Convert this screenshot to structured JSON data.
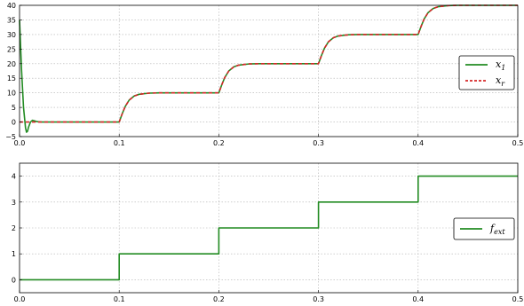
{
  "chart_data": [
    {
      "type": "line",
      "title": "",
      "xlabel": "",
      "ylabel": "",
      "xlim": [
        0.0,
        0.5
      ],
      "ylim": [
        -5,
        40
      ],
      "xticks": [
        "0.0",
        "0.1",
        "0.2",
        "0.3",
        "0.4",
        "0.5"
      ],
      "yticks": [
        "−5",
        "0",
        "5",
        "10",
        "15",
        "20",
        "25",
        "30",
        "35",
        "40"
      ],
      "grid": true,
      "legend_position": "right",
      "series": [
        {
          "name": "x1",
          "color": "#228b22",
          "style": "solid",
          "x": [
            0.0,
            0.002,
            0.004,
            0.006,
            0.007,
            0.008,
            0.009,
            0.011,
            0.013,
            0.015,
            0.018,
            0.022,
            0.1,
            0.103,
            0.106,
            0.11,
            0.115,
            0.12,
            0.13,
            0.14,
            0.2,
            0.203,
            0.206,
            0.21,
            0.215,
            0.22,
            0.23,
            0.24,
            0.3,
            0.303,
            0.306,
            0.31,
            0.315,
            0.32,
            0.33,
            0.34,
            0.4,
            0.403,
            0.406,
            0.41,
            0.415,
            0.42,
            0.43,
            0.44,
            0.5
          ],
          "y": [
            35,
            18,
            5,
            -2,
            -3.5,
            -3.2,
            -1.8,
            0,
            0.6,
            0.4,
            0.1,
            0,
            0,
            2.8,
            5.3,
            7.5,
            8.9,
            9.5,
            9.9,
            10,
            10,
            12.8,
            15.3,
            17.5,
            18.9,
            19.5,
            19.9,
            20,
            20,
            22.8,
            25.3,
            27.5,
            28.9,
            29.5,
            29.9,
            30,
            30,
            32.8,
            35.3,
            37.5,
            38.9,
            39.5,
            39.9,
            40,
            40
          ]
        },
        {
          "name": "xr",
          "color": "#d62728",
          "style": "dashed",
          "x": [
            0.0,
            0.1,
            0.103,
            0.106,
            0.11,
            0.115,
            0.12,
            0.13,
            0.14,
            0.2,
            0.203,
            0.206,
            0.21,
            0.215,
            0.22,
            0.23,
            0.24,
            0.3,
            0.303,
            0.306,
            0.31,
            0.315,
            0.32,
            0.33,
            0.34,
            0.4,
            0.403,
            0.406,
            0.41,
            0.415,
            0.42,
            0.43,
            0.44,
            0.5
          ],
          "y": [
            0,
            0,
            2.8,
            5.3,
            7.5,
            8.9,
            9.5,
            9.9,
            10,
            10,
            12.8,
            15.3,
            17.5,
            18.9,
            19.5,
            19.9,
            20,
            20,
            22.8,
            25.3,
            27.5,
            28.9,
            29.5,
            29.9,
            30,
            30,
            32.8,
            35.3,
            37.5,
            38.9,
            39.5,
            39.9,
            40,
            40
          ]
        }
      ]
    },
    {
      "type": "line",
      "title": "",
      "xlabel": "",
      "ylabel": "",
      "xlim": [
        0.0,
        0.5
      ],
      "ylim": [
        -0.5,
        4.5
      ],
      "xticks": [
        "0.0",
        "0.1",
        "0.2",
        "0.3",
        "0.4",
        "0.5"
      ],
      "yticks": [
        "0",
        "1",
        "2",
        "3",
        "4"
      ],
      "grid": true,
      "legend_position": "right",
      "series": [
        {
          "name": "fext",
          "color": "#228b22",
          "style": "solid",
          "x": [
            0.0,
            0.1,
            0.1,
            0.2,
            0.2,
            0.3,
            0.3,
            0.4,
            0.4,
            0.5
          ],
          "y": [
            0,
            0,
            1,
            1,
            2,
            2,
            3,
            3,
            4,
            4
          ]
        }
      ]
    }
  ],
  "legend": {
    "top": [
      {
        "symbol": "x",
        "sub": "1"
      },
      {
        "symbol": "x",
        "sub": "r"
      }
    ],
    "bottom": [
      {
        "symbol": "f",
        "sub": "ext"
      }
    ]
  }
}
